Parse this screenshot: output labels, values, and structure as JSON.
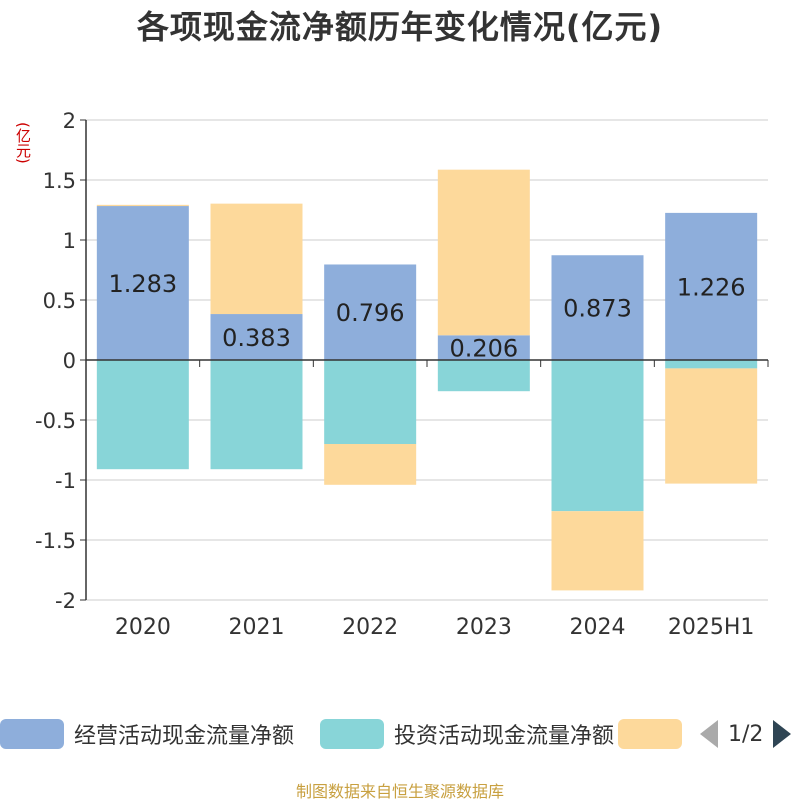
{
  "title": "各项现金流净额历年变化情况(亿元)",
  "source": "制图数据来自恒生聚源数据库",
  "legend_pager": "1/2",
  "chart_data": {
    "type": "bar",
    "stacked": true,
    "unit_label": "(亿元)",
    "categories": [
      "2020",
      "2021",
      "2022",
      "2023",
      "2024",
      "2025H1"
    ],
    "ylim": [
      -2,
      2
    ],
    "yticks": [
      "2",
      "1.5",
      "1",
      "0.5",
      "0",
      "-0.5",
      "-1",
      "-1.5",
      "-2"
    ],
    "grid": true,
    "legend_position": "bottom",
    "series": [
      {
        "name": "经营活动现金流量净额",
        "color": "#8eaedb",
        "values": [
          1.283,
          0.383,
          0.796,
          0.206,
          0.873,
          1.226
        ],
        "labels": [
          "1.283",
          "0.383",
          "0.796",
          "0.206",
          "0.873",
          "1.226"
        ]
      },
      {
        "name": "投资活动现金流量净额",
        "color": "#88d5d8",
        "values": [
          -0.91,
          -0.91,
          -0.7,
          -0.26,
          -1.26,
          -0.07
        ]
      },
      {
        "name": "",
        "color": "#fdd99b",
        "values": [
          0.01,
          0.92,
          -0.34,
          1.38,
          -0.66,
          -0.96
        ]
      }
    ]
  }
}
